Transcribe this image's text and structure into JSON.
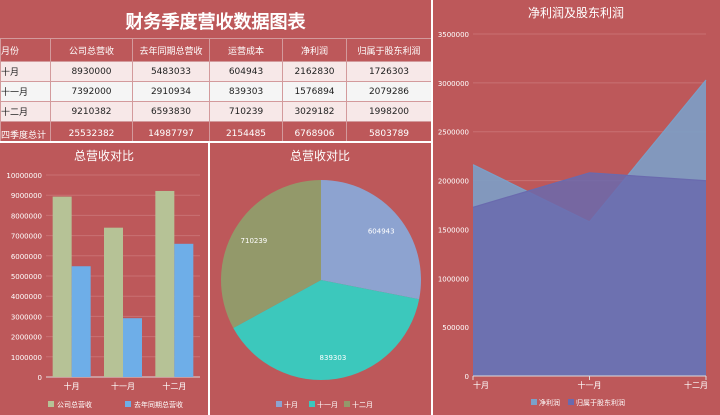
{
  "table_panel": {
    "title": "财务季度营收数据图表",
    "headers": [
      "月份",
      "公司总营收",
      "去年同期总营收",
      "运营成本",
      "净利润",
      "归属于股东利润"
    ],
    "rows": [
      [
        "十月",
        "8930000",
        "5483033",
        "604943",
        "2162830",
        "1726303"
      ],
      [
        "十一月",
        "7392000",
        "2910934",
        "839303",
        "1576894",
        "2079286"
      ],
      [
        "十二月",
        "9210382",
        "6593830",
        "710239",
        "3029182",
        "1998200"
      ]
    ],
    "total_row": [
      "四季度总计",
      "25532382",
      "14987797",
      "2154485",
      "6768906",
      "5803789"
    ]
  },
  "colors": {
    "panel_bg": "#bd585a",
    "bar_current": "#b6c296",
    "bar_last_year": "#6eaee8",
    "pie_oct": "#8da3d0",
    "pie_nov": "#3cc8bc",
    "pie_dec": "#93996a",
    "area_net": "#7ba0c8",
    "area_shareholder": "#6a6aae"
  },
  "chart_data": [
    {
      "type": "bar",
      "title": "总营收对比",
      "categories": [
        "十月",
        "十一月",
        "十二月"
      ],
      "series": [
        {
          "name": "公司总营收",
          "values": [
            8930000,
            7392000,
            9210382
          ]
        },
        {
          "name": "去年同期总营收",
          "values": [
            5483033,
            2910934,
            6593830
          ]
        }
      ],
      "ylim": [
        0,
        10000000
      ],
      "yticks": [
        "0",
        "1000000",
        "2000000",
        "3000000",
        "4000000",
        "5000000",
        "6000000",
        "7000000",
        "8000000",
        "9000000",
        "10000000"
      ],
      "grid": true,
      "legend": "bottom"
    },
    {
      "type": "pie",
      "title": "总营收对比",
      "categories": [
        "十月",
        "十一月",
        "十二月"
      ],
      "values": [
        604943,
        839303,
        710239
      ],
      "legend": "bottom"
    },
    {
      "type": "area",
      "title": "净利润及股东利润",
      "categories": [
        "十月",
        "十一月",
        "十二月"
      ],
      "series": [
        {
          "name": "净利润",
          "values": [
            2162830,
            1576894,
            3029182
          ]
        },
        {
          "name": "归属于股东利润",
          "values": [
            1726303,
            2079286,
            1998200
          ]
        }
      ],
      "ylim": [
        0,
        3500000
      ],
      "yticks": [
        "0",
        "500000",
        "1000000",
        "1500000",
        "2000000",
        "2500000",
        "3000000",
        "3500000"
      ],
      "grid": true,
      "legend": "bottom"
    }
  ]
}
